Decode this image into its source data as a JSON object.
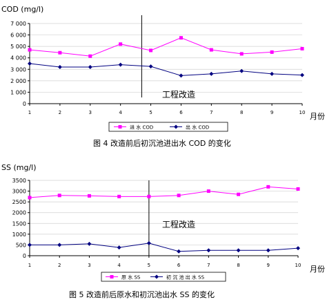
{
  "chart_data": [
    {
      "type": "line",
      "ylabel": "COD (mg/l)",
      "ylim": [
        0,
        7000
      ],
      "yticks": [
        "0",
        "1 000",
        "2 000",
        "3 000",
        "4 000",
        "5 000",
        "6 000",
        "7 000"
      ],
      "categories": [
        "1",
        "2",
        "3",
        "4",
        "5",
        "6",
        "7",
        "8",
        "9",
        "10"
      ],
      "xlabel": "月份",
      "series": [
        {
          "name": "进 水 COD",
          "color": "#ff00ff",
          "marker": "square",
          "values": [
            4700,
            4450,
            4150,
            5200,
            4650,
            5750,
            4700,
            4350,
            4500,
            4800
          ]
        },
        {
          "name": "出 水 COD",
          "color": "#000080",
          "marker": "diamond",
          "values": [
            3500,
            3200,
            3200,
            3400,
            3250,
            2450,
            2600,
            2850,
            2600,
            2500
          ]
        }
      ],
      "annotation": "工程改造",
      "divider_x": 4.7,
      "legend": "bottom",
      "caption": "图 4    改造前后初沉池进出水 COD 的变化"
    },
    {
      "type": "line",
      "ylabel": "SS (mg/l)",
      "ylim": [
        0,
        3500
      ],
      "yticks": [
        "0",
        "500",
        "1000",
        "1500",
        "2000",
        "2500",
        "3000",
        "3500"
      ],
      "categories": [
        "1",
        "2",
        "3",
        "4",
        "5",
        "6",
        "7",
        "8",
        "9",
        "10"
      ],
      "xlabel": "月份",
      "series": [
        {
          "name": "原 水 SS",
          "color": "#ff00ff",
          "marker": "square",
          "values": [
            2700,
            2800,
            2780,
            2750,
            2750,
            2800,
            3000,
            2850,
            3200,
            3100
          ]
        },
        {
          "name": "初 沉 池 出 水 SS",
          "color": "#000080",
          "marker": "diamond",
          "values": [
            500,
            500,
            550,
            380,
            580,
            200,
            250,
            250,
            250,
            350
          ]
        }
      ],
      "annotation": "工程改造",
      "divider_x": 5.0,
      "legend": "bottom",
      "caption": "图 5    改造前后原水和初沉池出水 SS 的变化"
    }
  ]
}
